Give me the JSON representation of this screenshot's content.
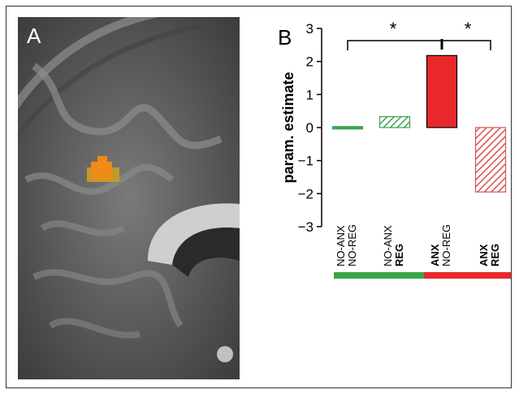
{
  "panels": {
    "a_label": "A",
    "b_label": "B"
  },
  "colors": {
    "green": "#3aa54a",
    "red": "#e8282a",
    "red_hatch": "#d9534f",
    "green_hatch": "#3aa54a",
    "activation": "#f08a1a"
  },
  "chart_data": {
    "type": "bar",
    "ylabel": "param. estimate",
    "ylim": [
      -3,
      3
    ],
    "yticks": [
      "3",
      "2",
      "1",
      "0",
      "−1",
      "−2",
      "−3"
    ],
    "yticks_values": [
      3,
      2,
      1,
      0,
      -1,
      -2,
      -3
    ],
    "categories": [
      {
        "line1": "NO-ANX",
        "line2": "NO-REG",
        "bold1": false,
        "bold2": false
      },
      {
        "line1": "NO-ANX",
        "line2": "REG",
        "bold1": false,
        "bold2": true
      },
      {
        "line1": "ANX",
        "line2": "NO-REG",
        "bold1": true,
        "bold2": false
      },
      {
        "line1": "ANX",
        "line2": "REG",
        "bold1": true,
        "bold2": true
      }
    ],
    "values": [
      0.03,
      0.33,
      2.18,
      -1.95
    ],
    "bar_styles": [
      "solid-green",
      "hatched-green",
      "solid-red",
      "hatched-red"
    ],
    "significance": [
      {
        "label": "*",
        "between": [
          0,
          2
        ]
      },
      {
        "label": "*",
        "between": [
          2,
          3
        ]
      }
    ],
    "group_bars": [
      "green",
      "red"
    ],
    "grid": false
  }
}
